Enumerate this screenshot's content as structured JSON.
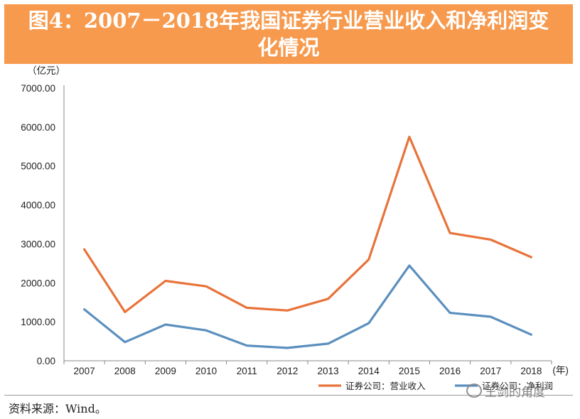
{
  "header": {
    "title_line1": "图4：2007－2018年我国证券行业营业收入和净利润变",
    "title_line2": "化情况"
  },
  "chart_data": {
    "type": "line",
    "title": "图4：2007－2018年我国证券行业营业收入和净利润变化情况",
    "ylabel": "（亿元）",
    "xlabel": "(年)",
    "categories": [
      "2007",
      "2008",
      "2009",
      "2010",
      "2011",
      "2012",
      "2013",
      "2014",
      "2015",
      "2016",
      "2017",
      "2018"
    ],
    "ylim": [
      0,
      7000
    ],
    "yticks": [
      "0.00",
      "1000.00",
      "2000.00",
      "3000.00",
      "4000.00",
      "5000.00",
      "6000.00",
      "7000.00"
    ],
    "grid": false,
    "legend_position": "bottom-right",
    "series": [
      {
        "name": "证券公司：营业收入",
        "color": "#e8733a",
        "values": [
          2860,
          1250,
          2050,
          1910,
          1360,
          1290,
          1590,
          2600,
          5750,
          3280,
          3110,
          2660
        ]
      },
      {
        "name": "证券公司：净利润",
        "color": "#5b8fbe",
        "values": [
          1320,
          480,
          930,
          780,
          390,
          330,
          440,
          965,
          2445,
          1230,
          1130,
          670
        ]
      }
    ]
  },
  "footer": {
    "source": "资料来源：Wind。",
    "watermark": "王剑的角度"
  }
}
